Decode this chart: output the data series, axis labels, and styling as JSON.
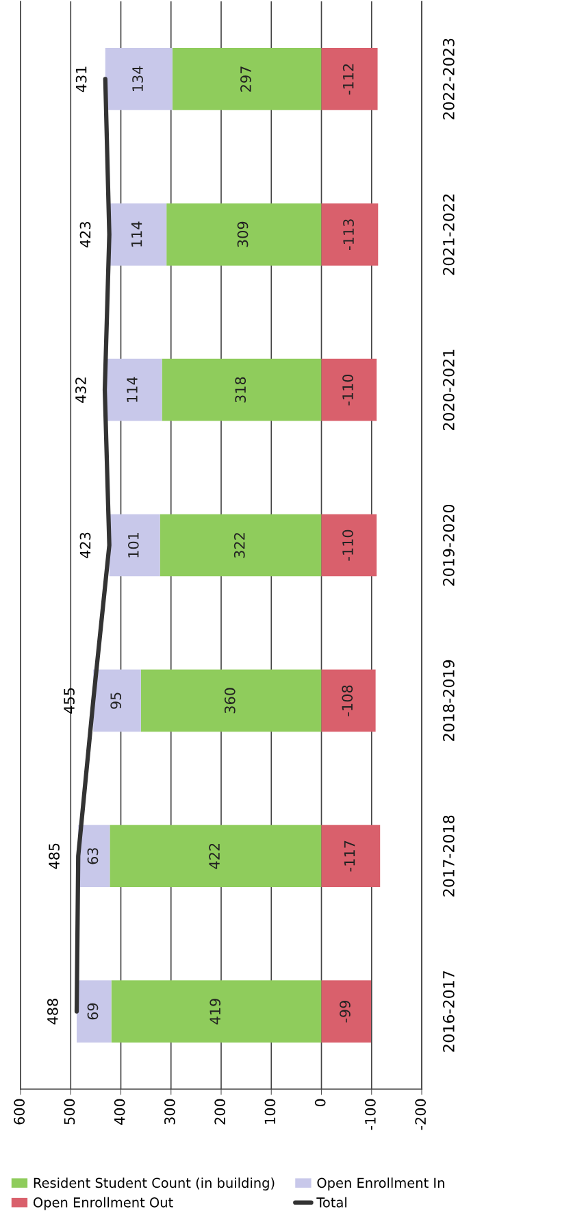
{
  "chart_data": {
    "type": "bar",
    "orientation": "horizontal",
    "stacked": true,
    "categories": [
      "2022-2023",
      "2021-2022",
      "2020-2021",
      "2019-2020",
      "2018-2019",
      "2017-2018",
      "2016-2017"
    ],
    "series": [
      {
        "name": "Resident Student Count (in building)",
        "color": "#8fcc5c",
        "values": [
          297,
          309,
          318,
          322,
          360,
          422,
          419
        ]
      },
      {
        "name": "Open Enrollment In",
        "color": "#c8c8ea",
        "values": [
          134,
          114,
          114,
          101,
          95,
          63,
          69
        ]
      },
      {
        "name": "Open Enrollment Out",
        "color": "#d9606c",
        "values": [
          -112,
          -113,
          -110,
          -110,
          -108,
          -117,
          -99
        ]
      },
      {
        "name": "Total",
        "type": "line",
        "color": "#333333",
        "values": [
          431,
          423,
          432,
          423,
          455,
          485,
          488
        ]
      }
    ],
    "xlim": [
      600,
      -200
    ],
    "xticks": [
      600,
      500,
      400,
      300,
      200,
      100,
      0,
      -100,
      -200
    ],
    "grid": "x",
    "legend": "bottom",
    "data_labels": true
  }
}
